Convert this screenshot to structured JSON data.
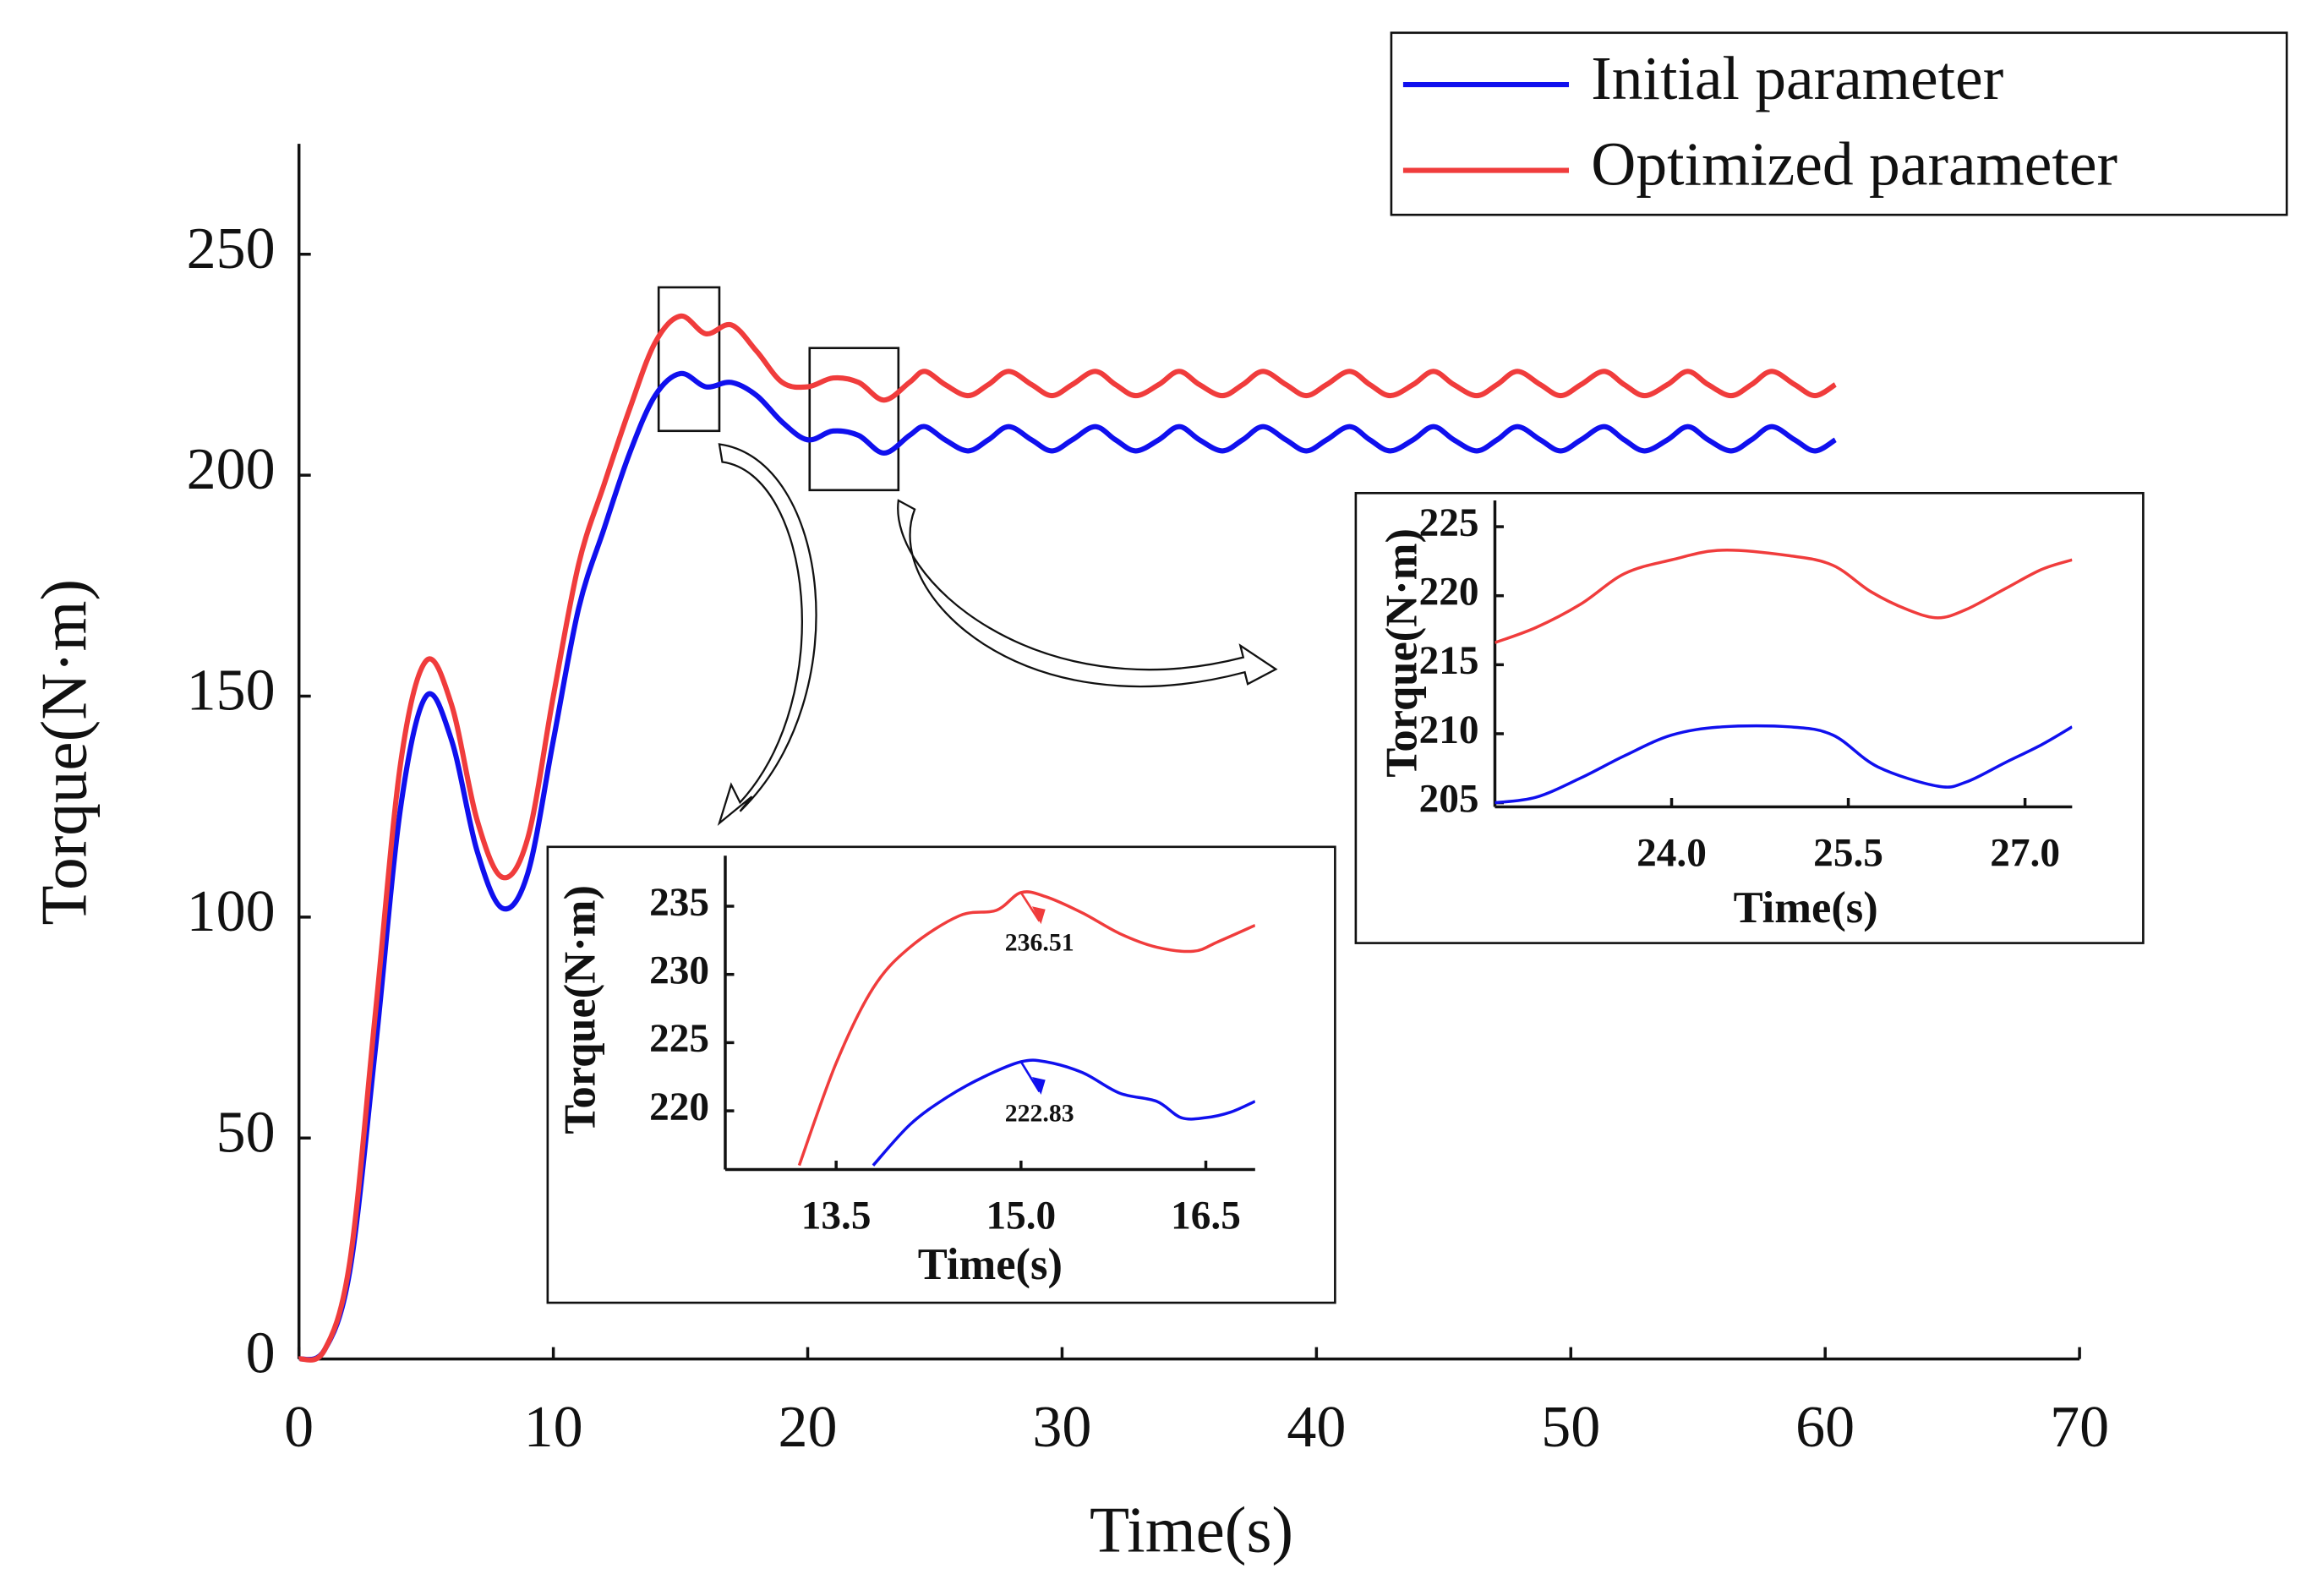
{
  "chart_data": [
    {
      "type": "line",
      "xlabel": "Time(s)",
      "ylabel": "Torque(N·m)",
      "x": [
        0,
        1,
        2,
        3,
        4,
        5,
        6,
        7,
        8,
        9,
        10,
        11,
        12,
        13,
        14,
        15,
        16,
        17,
        18,
        19,
        20,
        21,
        22,
        23,
        24,
        24.6,
        25.4,
        26.3,
        27.1,
        27.9,
        28.8,
        29.6,
        30.4,
        31.3,
        32.1,
        32.9,
        33.8,
        34.6,
        35.4,
        36.3,
        37.1,
        37.9,
        38.8,
        39.6,
        40.4,
        41.3,
        42.1,
        42.9,
        43.8,
        44.6,
        45.4,
        46.3,
        47.1,
        47.9,
        48.8,
        49.6,
        50.4,
        51.3,
        52.1,
        52.9,
        53.8,
        54.6,
        55.4,
        56.3,
        57.1,
        57.9,
        58.8,
        59.6,
        60.4
      ],
      "series": [
        {
          "name": "Initial parameter",
          "color": "#1010ee",
          "values": [
            0,
            2,
            20,
            70,
            125,
            150,
            140,
            115,
            102,
            110,
            140,
            170,
            188,
            205,
            218,
            223,
            220,
            221,
            218,
            212,
            208,
            210,
            209,
            205,
            209,
            211,
            208,
            205.5,
            208,
            211,
            208,
            205.5,
            208,
            211,
            208,
            205.5,
            208,
            211,
            208,
            205.5,
            208,
            211,
            208,
            205.5,
            208,
            211,
            208,
            205.5,
            208,
            211,
            208,
            205.5,
            208,
            211,
            208,
            205.5,
            208,
            211,
            208,
            205.5,
            208,
            211,
            208,
            205.5,
            208,
            211,
            208,
            205.5,
            208
          ]
        },
        {
          "name": "Optimized parameter",
          "color": "#f03c3c",
          "values": [
            0,
            2,
            22,
            78,
            135,
            158,
            148,
            122,
            109,
            118,
            150,
            180,
            198,
            215,
            230,
            236,
            232,
            234,
            228,
            221,
            220,
            222,
            221,
            217,
            221,
            223.5,
            220.5,
            218,
            220.5,
            223.5,
            220.5,
            218,
            220.5,
            223.5,
            220.5,
            218,
            220.5,
            223.5,
            220.5,
            218,
            220.5,
            223.5,
            220.5,
            218,
            220.5,
            223.5,
            220.5,
            218,
            220.5,
            223.5,
            220.5,
            218,
            220.5,
            223.5,
            220.5,
            218,
            220.5,
            223.5,
            220.5,
            218,
            220.5,
            223.5,
            220.5,
            218,
            220.5,
            223.5,
            220.5,
            218,
            220.5
          ]
        }
      ],
      "xlim": [
        0,
        70
      ],
      "xticks": [
        0,
        10,
        20,
        30,
        40,
        50,
        60,
        70
      ],
      "ylim": [
        0,
        275
      ],
      "yticks": [
        0,
        50,
        100,
        150,
        200,
        250
      ],
      "grid": false,
      "legend": "top-right"
    },
    {
      "type": "line",
      "xlabel": "Time(s)",
      "ylabel": "Torque(N·m)",
      "series": [
        {
          "color": "#f03c3c",
          "x": [
            13.2,
            13.5,
            13.8,
            14.1,
            14.5,
            14.8,
            15.0,
            15.2,
            15.5,
            15.8,
            16.1,
            16.4,
            16.6,
            16.9
          ],
          "values": [
            216,
            223.5,
            229,
            232,
            234.3,
            234.7,
            236,
            235.7,
            234.5,
            233,
            232,
            231.7,
            232.4,
            233.6
          ]
        },
        {
          "color": "#1010ee",
          "x": [
            13.8,
            14.1,
            14.4,
            14.7,
            15.0,
            15.2,
            15.5,
            15.8,
            16.1,
            16.3,
            16.5,
            16.7,
            16.9
          ],
          "values": [
            216,
            219,
            221,
            222.5,
            223.6,
            223.6,
            222.8,
            221.3,
            220.7,
            219.5,
            219.5,
            219.9,
            220.7
          ]
        }
      ],
      "annotations": [
        "236.51",
        "222.83"
      ],
      "xlim": [
        12.6,
        16.9
      ],
      "xticks": [
        13.5,
        {
          "value": 15,
          "label": "15.0"
        },
        16.5
      ],
      "ylim": [
        215.7,
        238.7
      ],
      "yticks": [
        220,
        225,
        230,
        235
      ]
    },
    {
      "type": "line",
      "xlabel": "Time(s)",
      "ylabel": "Torque(N·m)",
      "series": [
        {
          "color": "#f03c3c",
          "x": [
            22.5,
            22.85,
            23.23,
            23.6,
            24.0,
            24.43,
            25.0,
            25.37,
            25.69,
            26.0,
            26.26,
            26.5,
            26.83,
            27.14,
            27.4
          ],
          "values": [
            216.6,
            217.7,
            219.4,
            221.6,
            222.6,
            223.3,
            222.9,
            222.2,
            220.3,
            219,
            218.4,
            219,
            220.5,
            221.9,
            222.6
          ]
        },
        {
          "color": "#1010ee",
          "x": [
            22.5,
            22.85,
            23.23,
            23.6,
            24.0,
            24.43,
            25.0,
            25.37,
            25.75,
            26.26,
            26.5,
            26.83,
            27.14,
            27.4
          ],
          "values": [
            205,
            205.4,
            206.8,
            208.4,
            209.9,
            210.5,
            210.5,
            209.9,
            207.6,
            206.2,
            206.5,
            207.9,
            209.2,
            210.5
          ]
        }
      ],
      "xlim": [
        22.5,
        27.4
      ],
      "xticks": [
        {
          "value": 24,
          "label": "24.0"
        },
        25.5,
        {
          "value": 27,
          "label": "27.0"
        }
      ],
      "ylim": [
        204.7,
        226.9
      ],
      "yticks": [
        205,
        210,
        215,
        220,
        225
      ]
    }
  ]
}
